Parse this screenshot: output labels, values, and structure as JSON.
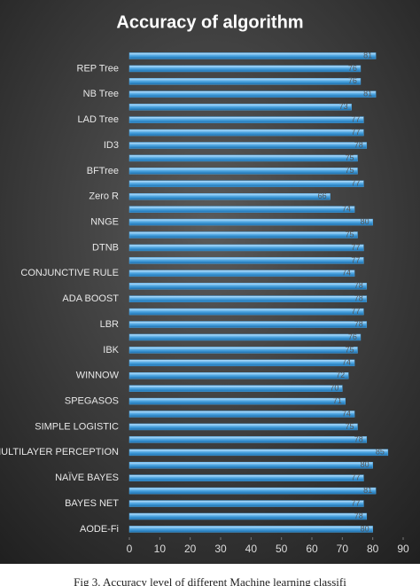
{
  "chart_data": {
    "type": "bar",
    "orientation": "horizontal",
    "title": "Accuracy of algorithm",
    "caption": "Fig 3. Accuracy level of different Machine learning classifi",
    "categories": [
      null,
      "REP Tree",
      null,
      "NB Tree",
      null,
      "LAD Tree",
      null,
      "ID3",
      null,
      "BFTree",
      null,
      "Zero R",
      null,
      "NNGE",
      null,
      "DTNB",
      null,
      "CONJUNCTIVE RULE",
      null,
      "ADA BOOST",
      null,
      "LBR",
      null,
      "IBK",
      null,
      "WINNOW",
      null,
      "SPEGASOS",
      null,
      "SIMPLE LOGISTIC",
      null,
      "MULTILAYER PERCEPTION",
      null,
      "NAÏVE BAYES",
      null,
      "BAYES NET",
      null,
      "AODE-Fi"
    ],
    "values": [
      81,
      76,
      76,
      81,
      73,
      77,
      77,
      78,
      75,
      75,
      77,
      66,
      74,
      80,
      75,
      77,
      77,
      74,
      78,
      78,
      77,
      78,
      76,
      75,
      74,
      72,
      70,
      71,
      74,
      75,
      78,
      85,
      80,
      77,
      81,
      77,
      78,
      80
    ],
    "color": "#4aa3e0",
    "xlim": [
      0,
      90
    ],
    "xticks": [
      0,
      10,
      20,
      30,
      40,
      50,
      60,
      70,
      80,
      90
    ]
  }
}
